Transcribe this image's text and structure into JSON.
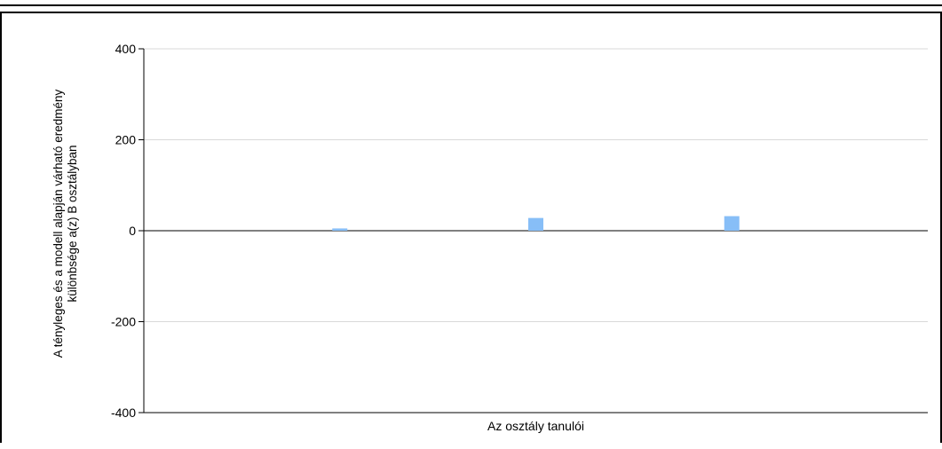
{
  "chart_data": {
    "type": "bar",
    "title": "",
    "ylabel_line1": "A tényleges és a modell alapján várható eredmény",
    "ylabel_line2": "különbsége a(z) B osztályban",
    "xlabel": "Az osztály tanulói",
    "ylim": [
      -400,
      400
    ],
    "yticks": [
      400,
      200,
      0,
      -200,
      -400
    ],
    "grid": true,
    "legend": "none",
    "series": [
      {
        "values": [
          5,
          28,
          32
        ],
        "color": "#87BEF7"
      }
    ]
  }
}
